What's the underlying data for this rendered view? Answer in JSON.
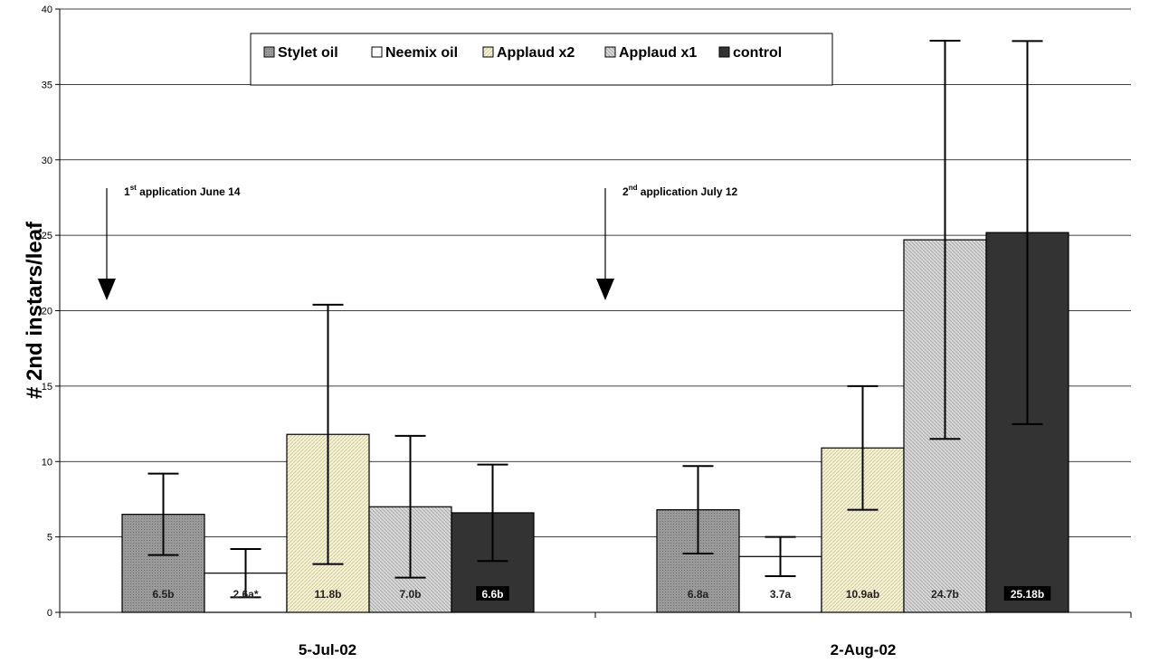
{
  "chart_data": {
    "type": "bar",
    "title": "",
    "xlabel": "",
    "ylabel": "# 2nd instars/leaf",
    "ylim": [
      0,
      40
    ],
    "yticks": [
      0,
      5,
      10,
      15,
      20,
      25,
      30,
      35,
      40
    ],
    "grid": true,
    "legend_position": "top",
    "categories": [
      "5-Jul-02",
      "2-Aug-02"
    ],
    "series": [
      {
        "name": "Stylet oil",
        "values": [
          6.5,
          6.8
        ],
        "errors": [
          2.7,
          2.9
        ],
        "labels": [
          "6.5b",
          "6.8a"
        ],
        "color": "#999999",
        "pattern": "dots-dark",
        "label_style": "plain"
      },
      {
        "name": "Neemix oil",
        "values": [
          2.6,
          3.7
        ],
        "errors": [
          1.6,
          1.3
        ],
        "labels": [
          "2.6a*",
          "3.7a"
        ],
        "color": "#ffffff",
        "pattern": "none",
        "label_style": "plain"
      },
      {
        "name": "Applaud x2",
        "values": [
          11.8,
          10.9
        ],
        "errors": [
          8.6,
          4.1
        ],
        "labels": [
          "11.8b",
          "10.9ab"
        ],
        "color": "#f4f1cc",
        "pattern": "hatch-light",
        "label_style": "plain"
      },
      {
        "name": "Applaud x1",
        "values": [
          7.0,
          24.7
        ],
        "errors": [
          4.7,
          13.2
        ],
        "labels": [
          "7.0b",
          "24.7b"
        ],
        "color": "#cfcfcf",
        "pattern": "hatch-gray",
        "label_style": "plain"
      },
      {
        "name": "control",
        "values": [
          6.6,
          25.18
        ],
        "errors": [
          3.2,
          12.7
        ],
        "labels": [
          "6.6b",
          "25.18b"
        ],
        "color": "#333333",
        "pattern": "none",
        "label_style": "boxed"
      }
    ],
    "annotations": [
      {
        "main": "1",
        "sup": "st",
        "rest": " application June 14",
        "x_category": 0
      },
      {
        "main": "2",
        "sup": "nd",
        "rest": " application July 12",
        "x_category": 1
      }
    ]
  }
}
